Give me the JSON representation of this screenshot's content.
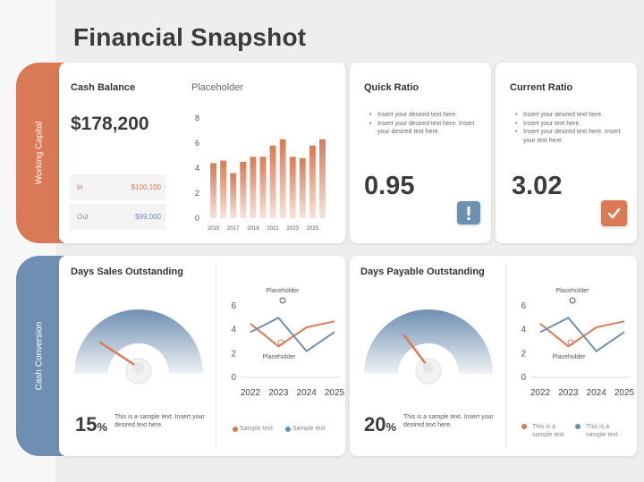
{
  "header": {
    "title": "Financial Snapshot"
  },
  "sections": {
    "working_capital": "Working Capital",
    "cash_conversion": "Cash Conversion"
  },
  "cash_balance": {
    "title": "Cash Balance",
    "amount": "$178,200",
    "in_label": "In",
    "in_value": "$100,100",
    "out_label": "Out",
    "out_value": "$99,000",
    "chart_title": "Placeholder"
  },
  "quick_ratio": {
    "title": "Quick Ratio",
    "bullets": [
      "Insert your desired text here.",
      "Insert your desired text here. Insert your desired text here."
    ],
    "value": "0.95",
    "badge_color": "#6f8fb2"
  },
  "current_ratio": {
    "title": "Current Ratio",
    "bullets": [
      "Insert your desired text here.",
      "Insert your text here.",
      "Insert your desired text here. Insert your text here."
    ],
    "value": "3.02",
    "badge_color": "#d97955"
  },
  "dso": {
    "title": "Days Sales Outstanding",
    "percent": "15",
    "percent_sign": "%",
    "note": "This is a sample text. Insert your desired text here.",
    "chart_labels": [
      "Placeholder",
      "Placeholder"
    ],
    "legend": [
      "Sample text",
      "Sample text"
    ],
    "gauge_value": 15
  },
  "dpo": {
    "title": "Days Payable Outstanding",
    "percent": "20",
    "percent_sign": "%",
    "note": "This is a sample text. Insert your desired text here.",
    "chart_labels": [
      "Placeholder",
      "Placeholder"
    ],
    "legend": [
      "This is a sample text",
      "This is a sample text"
    ],
    "gauge_value": 20
  },
  "colors": {
    "orange": "#d97955",
    "blue": "#6f8fb2"
  },
  "chart_data": [
    {
      "type": "bar",
      "title": "Placeholder",
      "categories": [
        "2015",
        "2016",
        "2017",
        "2018",
        "2019",
        "2020",
        "2021",
        "2022",
        "2023",
        "2024",
        "2025",
        "2026"
      ],
      "tick_labels": [
        "2015",
        "2017",
        "2019",
        "2021",
        "2023",
        "2025"
      ],
      "values": [
        4.4,
        4.6,
        3.6,
        4.5,
        4.9,
        4.9,
        5.8,
        6.3,
        4.9,
        4.8,
        5.8,
        6.3
      ],
      "ylim": [
        0,
        8
      ],
      "yticks": [
        0,
        2,
        4,
        6,
        8
      ]
    },
    {
      "type": "line",
      "categories": [
        "2022",
        "2023",
        "2024",
        "2025"
      ],
      "series": [
        {
          "values": [
            4.5,
            2.6,
            4.2,
            4.7
          ]
        },
        {
          "values": [
            3.8,
            5.0,
            2.2,
            3.8
          ]
        }
      ],
      "ylim": [
        0,
        6
      ],
      "yticks": [
        0,
        2,
        4,
        6
      ]
    },
    {
      "type": "line",
      "categories": [
        "2022",
        "2023",
        "2024",
        "2025"
      ],
      "series": [
        {
          "values": [
            4.5,
            2.6,
            4.2,
            4.7
          ]
        },
        {
          "values": [
            3.8,
            5.0,
            2.2,
            3.8
          ]
        }
      ],
      "ylim": [
        0,
        6
      ],
      "yticks": [
        0,
        2,
        4,
        6
      ]
    }
  ]
}
